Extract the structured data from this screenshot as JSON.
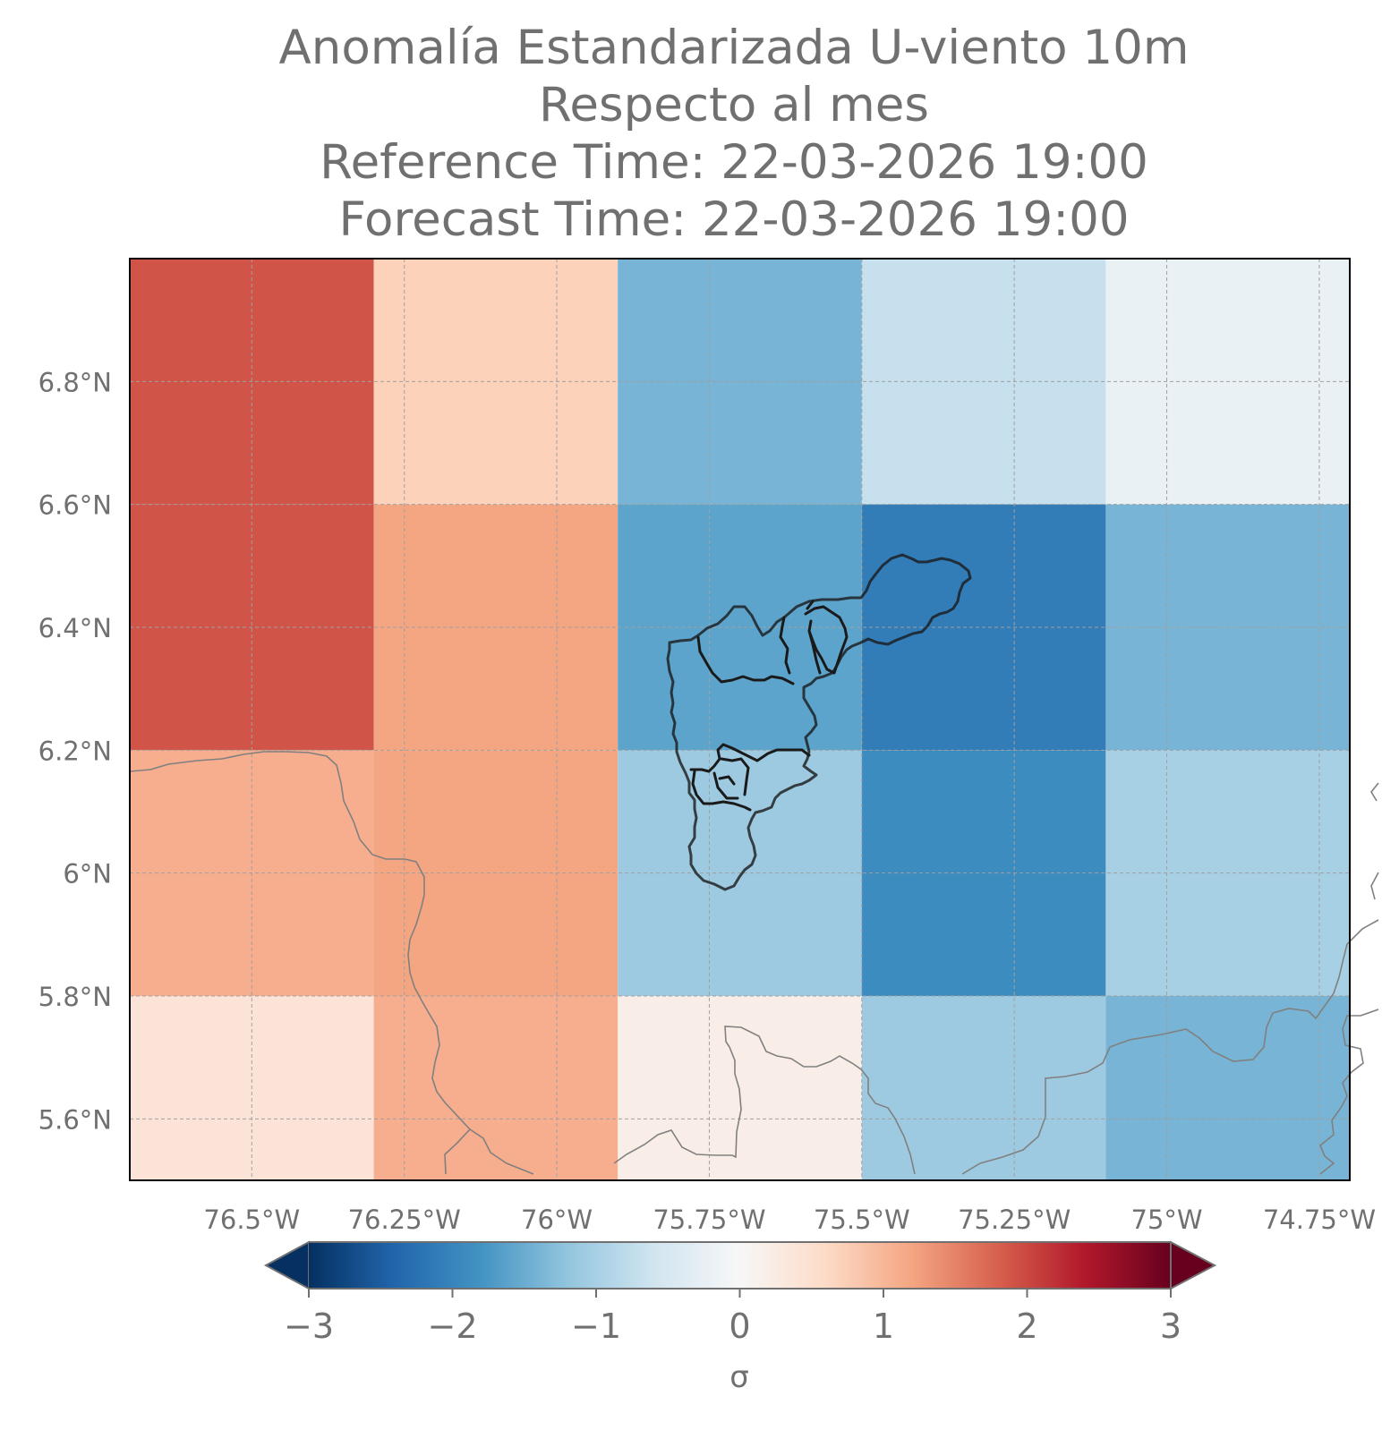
{
  "title": {
    "line1": "Anomalía Estandarizada U-viento 10m",
    "line2": "Respecto al mes",
    "line3": "Reference Time: 22-03-2026 19:00",
    "line4": "Forecast Time: 22-03-2026 19:00"
  },
  "map": {
    "lon_range": [
      -76.7,
      -74.7
    ],
    "lat_range": [
      5.5,
      7.0
    ],
    "lon_ticks": [
      {
        "value": -76.5,
        "label": "76.5°W"
      },
      {
        "value": -76.25,
        "label": "76.25°W"
      },
      {
        "value": -76.0,
        "label": "76°W"
      },
      {
        "value": -75.75,
        "label": "75.75°W"
      },
      {
        "value": -75.5,
        "label": "75.5°W"
      },
      {
        "value": -75.25,
        "label": "75.25°W"
      },
      {
        "value": -75.0,
        "label": "75°W"
      },
      {
        "value": -74.75,
        "label": "74.75°W"
      }
    ],
    "lat_ticks": [
      {
        "value": 6.8,
        "label": "6.8°N"
      },
      {
        "value": 6.6,
        "label": "6.6°N"
      },
      {
        "value": 6.4,
        "label": "6.4°N"
      },
      {
        "value": 6.2,
        "label": "6.2°N"
      },
      {
        "value": 6.0,
        "label": "6°N"
      },
      {
        "value": 5.8,
        "label": "5.8°N"
      },
      {
        "value": 5.6,
        "label": "5.6°N"
      }
    ],
    "grid_lines": "dashed",
    "cells": {
      "lon_edges": [
        -76.7,
        -76.3,
        -75.9,
        -75.5,
        -75.1,
        -74.7
      ],
      "lat_edges": [
        7.0,
        6.6,
        6.2,
        5.8,
        5.5
      ],
      "values": [
        [
          1.9,
          0.7,
          -1.4,
          -0.7,
          -0.2
        ],
        [
          1.9,
          1.2,
          -1.6,
          -2.1,
          -1.4
        ],
        [
          1.1,
          1.2,
          -1.1,
          -1.9,
          -1.0
        ],
        [
          0.4,
          1.1,
          0.2,
          -1.1,
          -1.4
        ]
      ]
    },
    "colors": {
      "boundary_thick": "#1a1a1a",
      "boundary_thin": "#808080",
      "grid": "#a0a0a0"
    }
  },
  "colorbar": {
    "ticks": [
      {
        "value": -3,
        "label": "−3"
      },
      {
        "value": -2,
        "label": "−2"
      },
      {
        "value": -1,
        "label": "−1"
      },
      {
        "value": 0,
        "label": "0"
      },
      {
        "value": 1,
        "label": "1"
      },
      {
        "value": 2,
        "label": "2"
      },
      {
        "value": 3,
        "label": "3"
      }
    ],
    "range": [
      -3,
      3
    ],
    "label": "σ",
    "colormap": "RdBu_r",
    "extend": "both"
  }
}
